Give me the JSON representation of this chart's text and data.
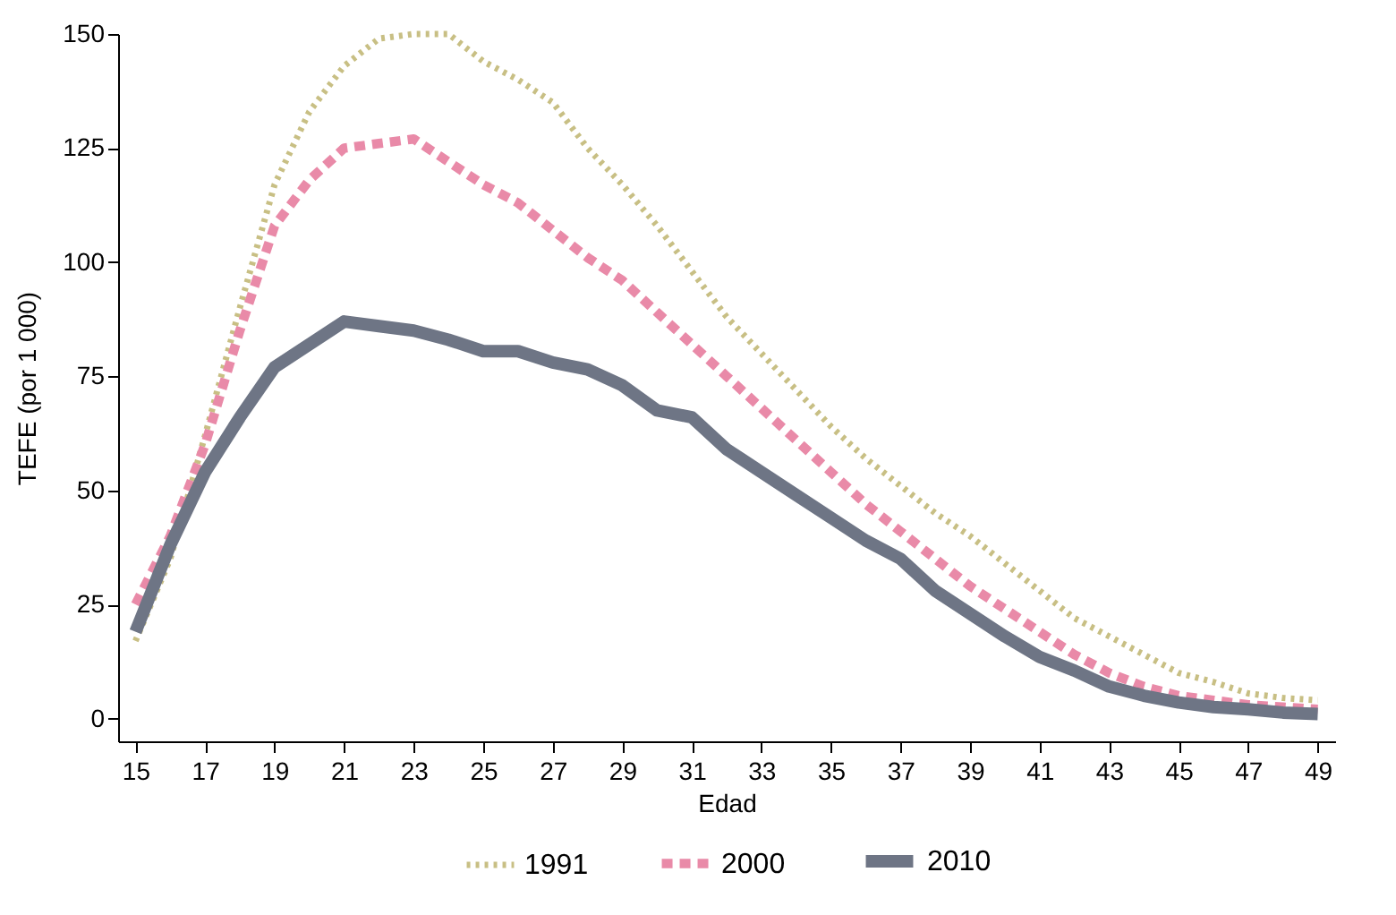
{
  "chart_data": {
    "type": "line",
    "xlabel": "Edad",
    "ylabel": "TEFE (por 1 000)",
    "x": [
      15,
      16,
      17,
      18,
      19,
      20,
      21,
      22,
      23,
      24,
      25,
      26,
      27,
      28,
      29,
      30,
      31,
      32,
      33,
      34,
      35,
      36,
      37,
      38,
      39,
      40,
      41,
      42,
      43,
      44,
      45,
      46,
      47,
      48,
      49
    ],
    "xlim": [
      14.5,
      49.5
    ],
    "ylim": [
      -5,
      150
    ],
    "xticks": [
      15,
      17,
      19,
      21,
      23,
      25,
      27,
      29,
      31,
      33,
      35,
      37,
      39,
      41,
      43,
      45,
      47,
      49
    ],
    "yticks": [
      0,
      25,
      50,
      75,
      100,
      125,
      150
    ],
    "grid": false,
    "legend": "bottom",
    "marker": "none",
    "series": [
      {
        "name": "1991",
        "color": "#c8bf84",
        "line_style": "dotted",
        "values": [
          17,
          35,
          62,
          90,
          117,
          133,
          143,
          149,
          150,
          150,
          144,
          140,
          135,
          125,
          117,
          108,
          98,
          88,
          80,
          72,
          64,
          57,
          51,
          45,
          40,
          34,
          28,
          22,
          18,
          14,
          10,
          8,
          5.5,
          4.5,
          4
        ]
      },
      {
        "name": "2000",
        "color": "#e98aa8",
        "line_style": "dashed",
        "values": [
          25,
          40,
          60,
          85,
          108,
          118,
          125,
          126,
          127,
          122,
          117,
          113,
          107,
          101,
          96,
          89,
          82,
          75,
          68,
          61,
          54,
          47,
          41,
          35,
          29,
          24,
          19,
          14,
          10,
          7,
          5,
          4,
          3,
          2.5,
          2
        ]
      },
      {
        "name": "2010",
        "color": "#6e7585",
        "line_style": "solid",
        "values": [
          19,
          38,
          54,
          66,
          77,
          82,
          87,
          86,
          85,
          83,
          80.5,
          80.5,
          78,
          76.5,
          73,
          67.5,
          66,
          59,
          54,
          49,
          44,
          39,
          35,
          28,
          23,
          18,
          13.5,
          10.5,
          7,
          5,
          3.5,
          2.5,
          2,
          1.3,
          1
        ]
      }
    ]
  }
}
